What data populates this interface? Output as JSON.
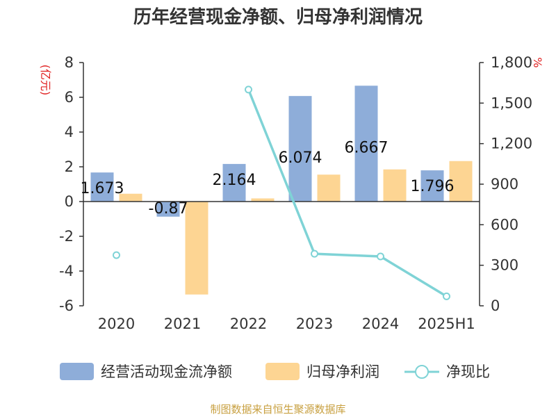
{
  "title": "历年经营现金净额、归母净利润情况",
  "source": "制图数据来自恒生聚源数据库",
  "colors": {
    "cash": "#8eadd9",
    "profit": "#fdd593",
    "ratio": "#7fd3d6",
    "unit": "#e02020"
  },
  "chart_data": {
    "type": "bar",
    "title": "历年经营现金净额、归母净利润情况",
    "categories": [
      "2020",
      "2021",
      "2022",
      "2023",
      "2024",
      "2025H1"
    ],
    "left_axis": {
      "unit": "(亿元)",
      "ylim": [
        -6,
        8
      ],
      "ticks": [
        "8",
        "6",
        "4",
        "2",
        "0",
        "-2",
        "-4",
        "-6"
      ]
    },
    "right_axis": {
      "unit": "%",
      "ylim": [
        0,
        1800
      ],
      "ticks": [
        "1,800",
        "1,500",
        "1,200",
        "900",
        "600",
        "300",
        "0"
      ]
    },
    "series": [
      {
        "name": "经营活动现金流净额",
        "type": "bar",
        "axis": "left",
        "values": [
          1.673,
          -0.87,
          2.164,
          6.074,
          6.667,
          1.796
        ],
        "labels": [
          "1.673",
          "-0.87",
          "2.164",
          "6.074",
          "6.667",
          "1.796"
        ]
      },
      {
        "name": "归母净利润",
        "type": "bar",
        "axis": "left",
        "values": [
          0.45,
          -5.35,
          0.18,
          1.55,
          1.85,
          2.33
        ]
      },
      {
        "name": "净现比",
        "type": "line",
        "axis": "right",
        "values": [
          375,
          null,
          1600,
          385,
          365,
          70
        ]
      }
    ],
    "legend": {
      "position": "bottom"
    },
    "grid": false
  }
}
